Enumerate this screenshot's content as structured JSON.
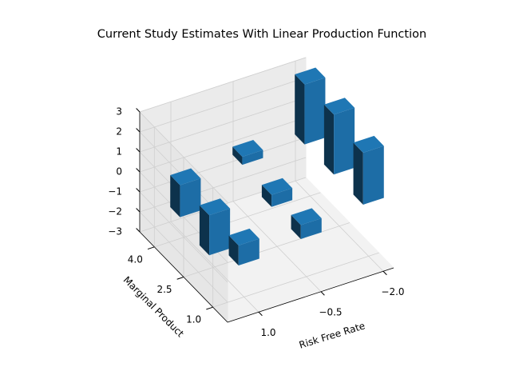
{
  "chart_data": {
    "type": "bar3d",
    "title": "Current Study Estimates With Linear Production Function",
    "xlabel": "Risk Free Rate",
    "ylabel": "Marginal Product",
    "x": [
      1,
      1,
      1,
      -0.5,
      -0.5,
      -0.5,
      -2,
      -2,
      -2
    ],
    "y": [
      4,
      2.5,
      1,
      4,
      2.5,
      1,
      4,
      2.5,
      1
    ],
    "values": [
      -1.6,
      -2.0,
      -1.0,
      0.4,
      -0.6,
      -0.7,
      3.0,
      3.0,
      2.6
    ],
    "color": "#1f77b4",
    "xlim": [
      1.75,
      -2.25
    ],
    "ylim": [
      0.25,
      4.75
    ],
    "zlim": [
      -3,
      3
    ],
    "xticks": [
      {
        "value": 1,
        "label": "1.0"
      },
      {
        "value": -0.5,
        "label": "−0.5"
      },
      {
        "value": -2,
        "label": "−2.0"
      }
    ],
    "yticks": [
      {
        "value": 1,
        "label": "1.0"
      },
      {
        "value": 2.5,
        "label": "2.5"
      },
      {
        "value": 4,
        "label": "4.0"
      }
    ],
    "zticks": [
      {
        "value": -3,
        "label": "−3"
      },
      {
        "value": -2,
        "label": "−2"
      },
      {
        "value": -1,
        "label": "−1"
      },
      0,
      1,
      2,
      3
    ],
    "grid": true
  }
}
